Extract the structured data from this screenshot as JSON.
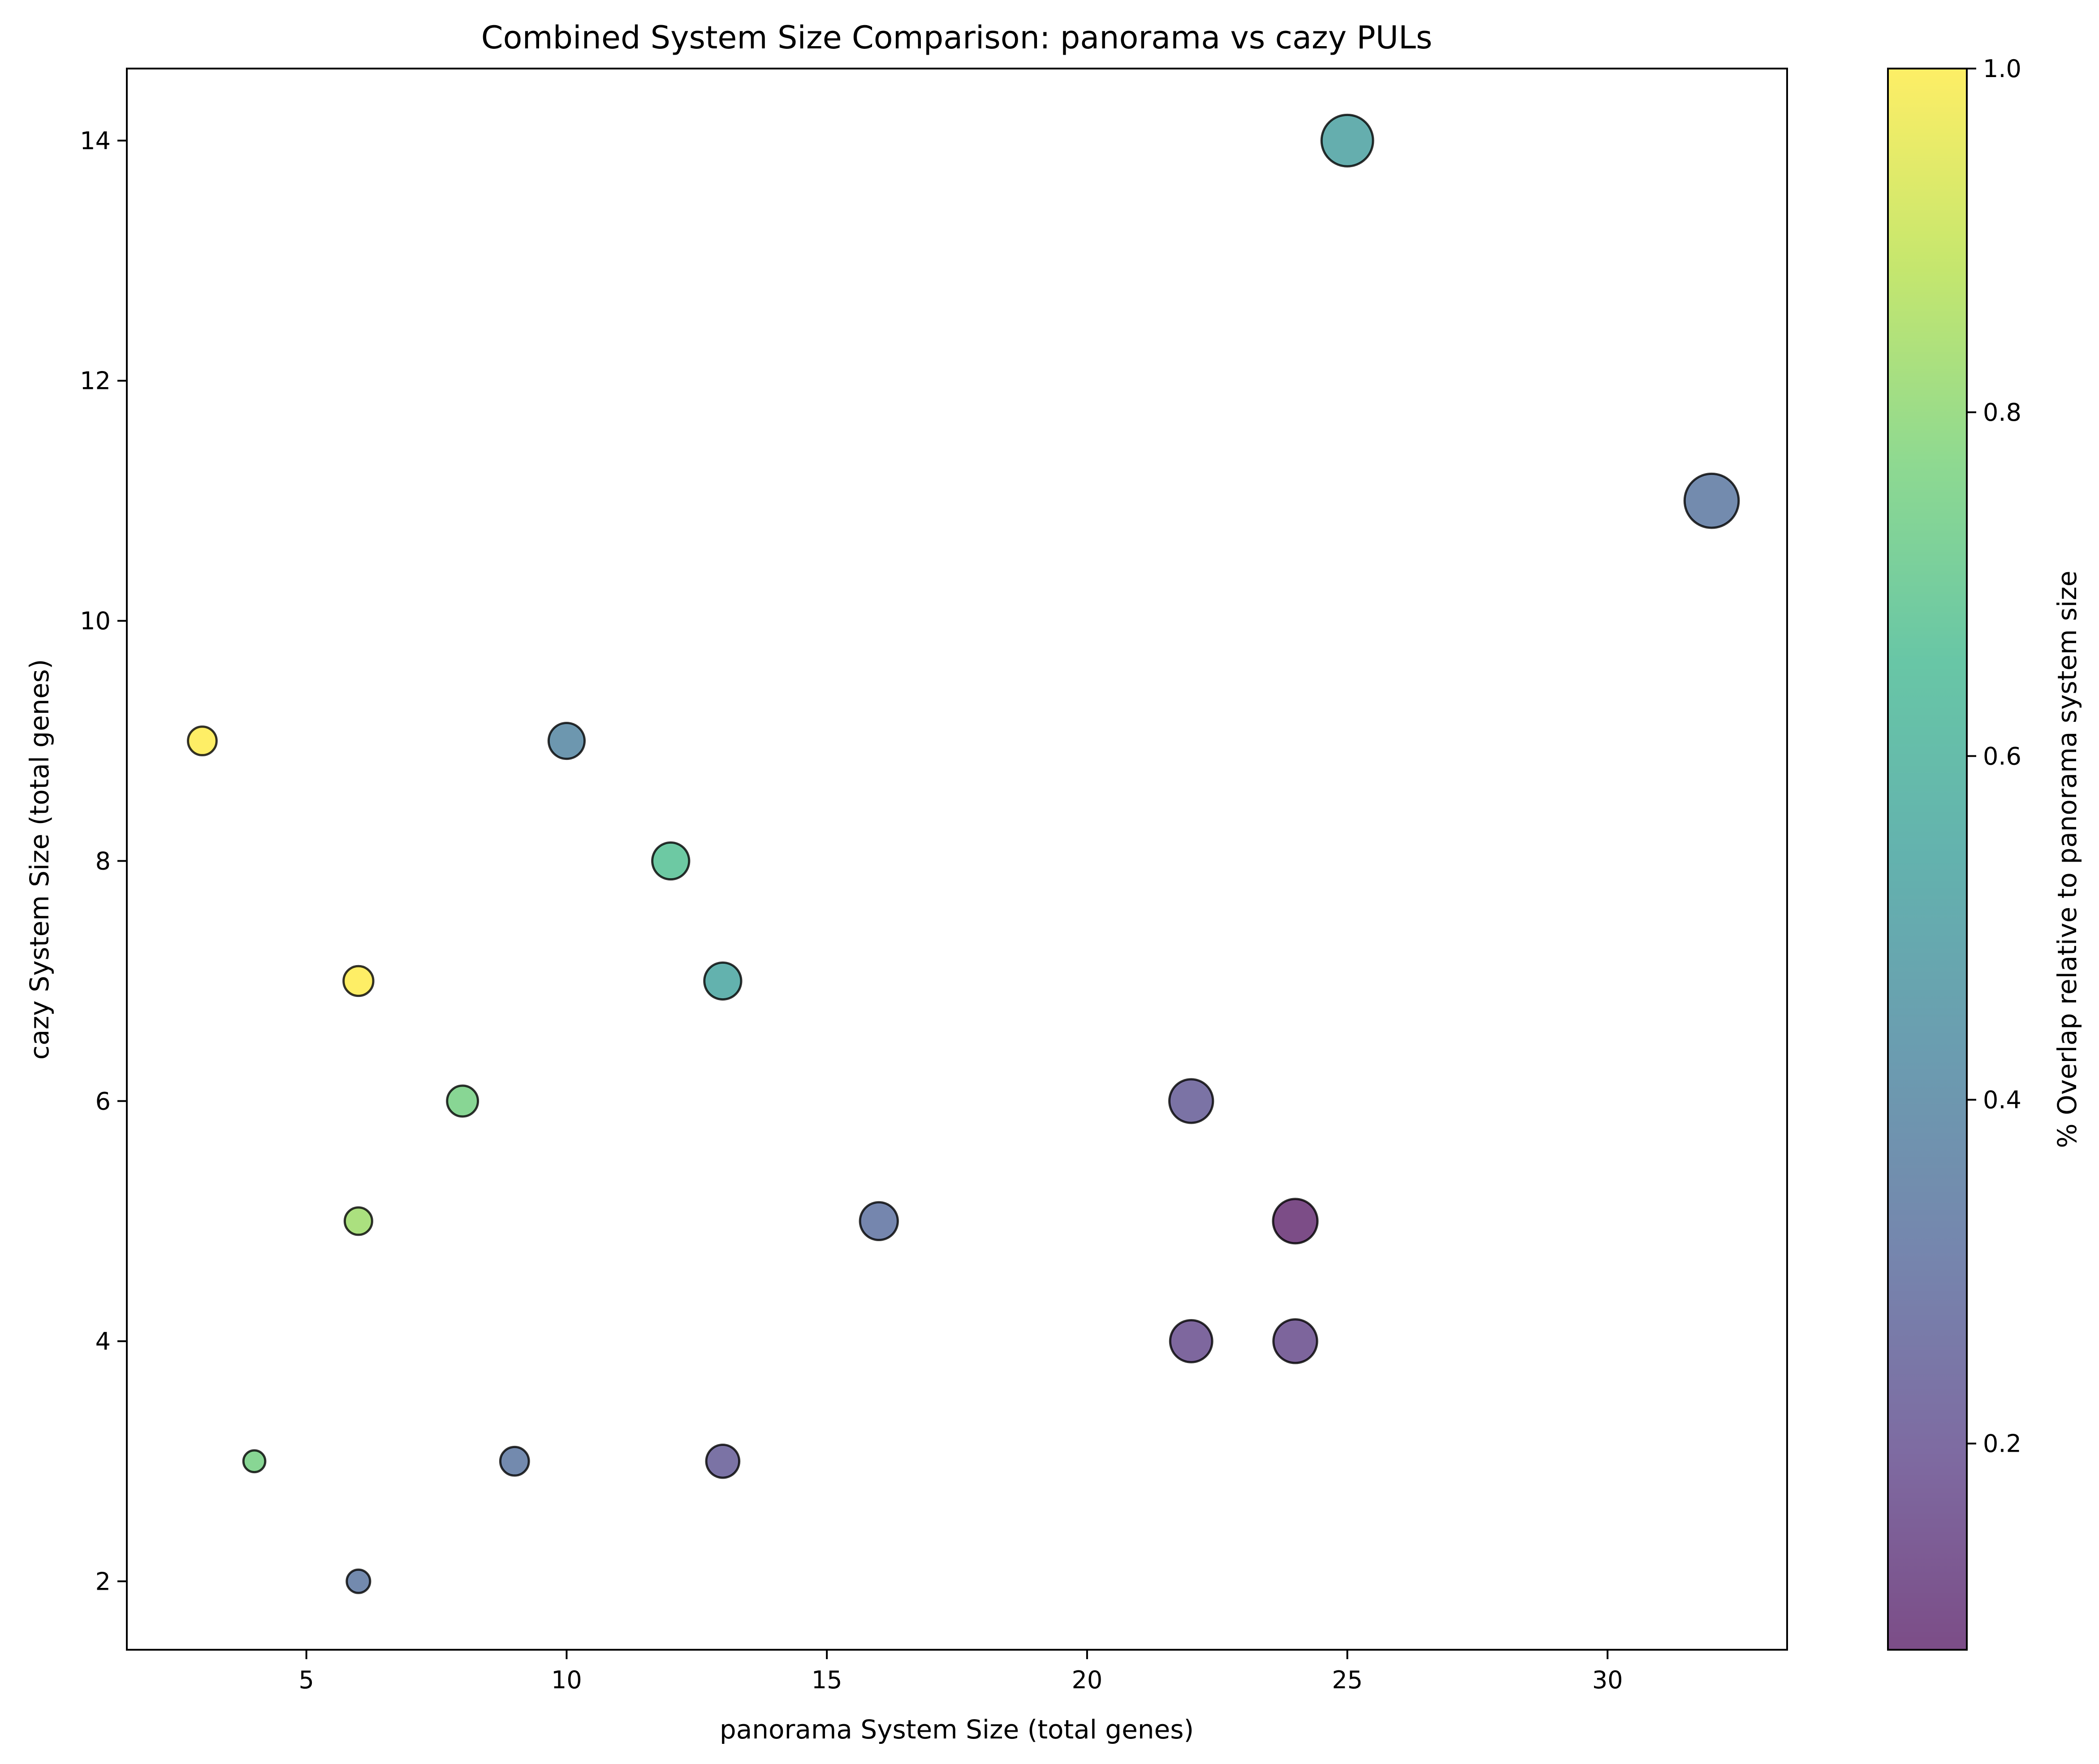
{
  "chart_data": {
    "type": "scatter",
    "title": "Combined System Size Comparison: panorama vs cazy PULs",
    "xlabel": "panorama System Size (total genes)",
    "ylabel": "cazy System Size (total genes)",
    "xlim": [
      1.55,
      33.45
    ],
    "ylim": [
      1.43,
      14.6
    ],
    "xticks": [
      5,
      10,
      15,
      20,
      25,
      30
    ],
    "yticks": [
      2,
      4,
      6,
      8,
      10,
      12,
      14
    ],
    "grid": false,
    "marker_size_encoding": "combined system size",
    "points": [
      {
        "x": 3,
        "y": 9,
        "overlap": 1.0,
        "size": 12
      },
      {
        "x": 4,
        "y": 3,
        "overlap": 0.75,
        "size": 7
      },
      {
        "x": 6,
        "y": 7,
        "overlap": 1.0,
        "size": 13
      },
      {
        "x": 6,
        "y": 5,
        "overlap": 0.83,
        "size": 11
      },
      {
        "x": 6,
        "y": 2,
        "overlap": 0.33,
        "size": 8
      },
      {
        "x": 8,
        "y": 6,
        "overlap": 0.75,
        "size": 14
      },
      {
        "x": 9,
        "y": 3,
        "overlap": 0.33,
        "size": 12
      },
      {
        "x": 10,
        "y": 9,
        "overlap": 0.4,
        "size": 19
      },
      {
        "x": 12,
        "y": 8,
        "overlap": 0.67,
        "size": 20
      },
      {
        "x": 13,
        "y": 7,
        "overlap": 0.54,
        "size": 20
      },
      {
        "x": 13,
        "y": 3,
        "overlap": 0.23,
        "size": 16
      },
      {
        "x": 16,
        "y": 5,
        "overlap": 0.31,
        "size": 21
      },
      {
        "x": 22,
        "y": 6,
        "overlap": 0.23,
        "size": 28
      },
      {
        "x": 22,
        "y": 4,
        "overlap": 0.18,
        "size": 26
      },
      {
        "x": 24,
        "y": 5,
        "overlap": 0.08,
        "size": 29
      },
      {
        "x": 24,
        "y": 4,
        "overlap": 0.17,
        "size": 28
      },
      {
        "x": 25,
        "y": 14,
        "overlap": 0.52,
        "size": 39
      },
      {
        "x": 32,
        "y": 11,
        "overlap": 0.34,
        "size": 43
      }
    ],
    "colorbar": {
      "label": "% Overlap relative to panorama system size",
      "colormap": "viridis",
      "range": [
        0.08,
        1.0
      ],
      "ticks": [
        0.2,
        0.4,
        0.6,
        0.8,
        1.0
      ],
      "tick_labels": [
        "0.2",
        "0.4",
        "0.6",
        "0.8",
        "1.0"
      ],
      "alpha": 0.7
    },
    "xtick_labels": [
      "5",
      "10",
      "15",
      "20",
      "25",
      "30"
    ],
    "ytick_labels": [
      "2",
      "4",
      "6",
      "8",
      "10",
      "12",
      "14"
    ]
  }
}
